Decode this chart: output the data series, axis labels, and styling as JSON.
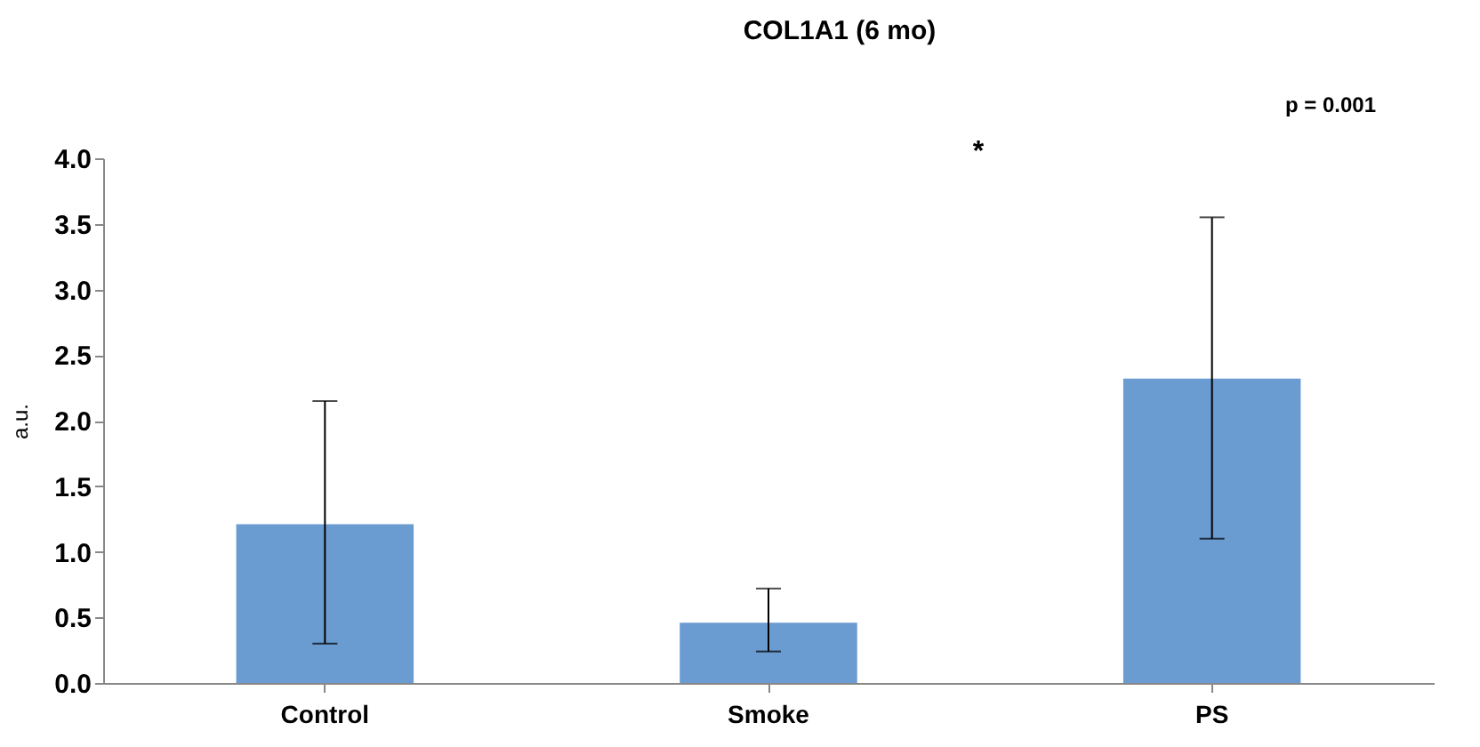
{
  "chart_data": {
    "type": "bar",
    "title": "COL1A1  (6 mo)",
    "ylabel": "a.u.",
    "categories": [
      "Control",
      "Smoke",
      "PS"
    ],
    "values": [
      1.21,
      0.46,
      2.32
    ],
    "color": "#6a9bd1",
    "errors": [
      [
        0.3,
        2.15
      ],
      [
        0.24,
        0.72
      ],
      [
        1.1,
        3.55
      ]
    ],
    "ylim": [
      0,
      4
    ],
    "yticks": [
      {
        "value": 0,
        "label": "0.0"
      },
      {
        "value": 0.5,
        "label": "0.5"
      },
      {
        "value": 1,
        "label": "1.0"
      },
      {
        "value": 1.5,
        "label": "1.5"
      },
      {
        "value": 2,
        "label": "2.0"
      },
      {
        "value": 2.5,
        "label": "2.5"
      },
      {
        "value": 3,
        "label": "3.0"
      },
      {
        "value": 3.5,
        "label": "3.5"
      },
      {
        "value": 4,
        "label": "4.0"
      }
    ],
    "grid": false,
    "annotations": [
      "p = 0.001",
      "*"
    ]
  }
}
